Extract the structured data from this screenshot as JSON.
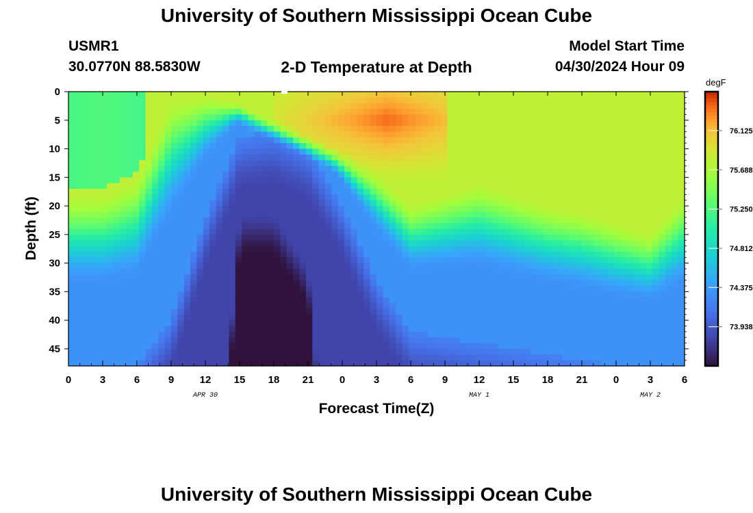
{
  "page": {
    "title_top": "University of Southern Mississippi Ocean Cube",
    "title_bottom": "University of Southern Mississippi Ocean Cube",
    "station": "USMR1",
    "coords": "30.0770N  88.5830W",
    "plot_title": "2-D Temperature at Depth",
    "model_label": "Model Start Time",
    "model_time": "04/30/2024 Hour 09"
  },
  "chart_data": {
    "type": "heatmap",
    "title": "2-D Temperature at Depth",
    "xlabel": "Forecast Time(Z)",
    "ylabel": "Depth (ft)",
    "x_ticks": [
      "0",
      "3",
      "6",
      "9",
      "12",
      "15",
      "18",
      "21",
      "0",
      "3",
      "6",
      "9",
      "12",
      "15",
      "18",
      "21",
      "0",
      "3",
      "6"
    ],
    "x_range_hours": [
      0,
      54
    ],
    "date_labels": [
      {
        "label": "APR 30",
        "hour": 12
      },
      {
        "label": "MAY 1",
        "hour": 36
      },
      {
        "label": "MAY 2",
        "hour": 51
      }
    ],
    "y_ticks": [
      "0",
      "5",
      "10",
      "15",
      "20",
      "25",
      "30",
      "35",
      "40",
      "45"
    ],
    "y_range_ft": [
      0,
      48
    ],
    "colorbar": {
      "unit": "degF",
      "min": 73.5,
      "max": 76.56,
      "ticks": [
        "76.125",
        "75.688",
        "75.250",
        "74.812",
        "74.375",
        "73.938"
      ]
    },
    "contour_depths": {
      "hours": [
        0,
        3,
        6,
        9,
        12,
        15,
        18,
        21,
        24,
        27,
        30,
        33,
        36,
        39,
        42,
        45,
        48,
        51,
        54
      ],
      "warm_bottom_ft": [
        17,
        17,
        14,
        0,
        0,
        2,
        5,
        8,
        11,
        14,
        19,
        17,
        15,
        17,
        19,
        20,
        22,
        24,
        17
      ],
      "cold_top_ft": [
        48,
        48,
        48,
        40,
        22,
        8,
        7,
        10,
        20,
        33,
        42,
        43,
        44,
        45,
        46,
        47,
        48,
        48,
        48
      ],
      "deep_core_top_ft": [
        99,
        99,
        99,
        99,
        99,
        21,
        21,
        30,
        99,
        99,
        99,
        99,
        99,
        99,
        99,
        99,
        99,
        99,
        99
      ]
    },
    "temperature_levels_degF": {
      "surface_warm_core": 76.4,
      "upper_layer": 75.8,
      "mixed_layer": 74.8,
      "mid_layer": 74.3,
      "cold_layer": 73.8,
      "deep_core": 73.5
    }
  }
}
